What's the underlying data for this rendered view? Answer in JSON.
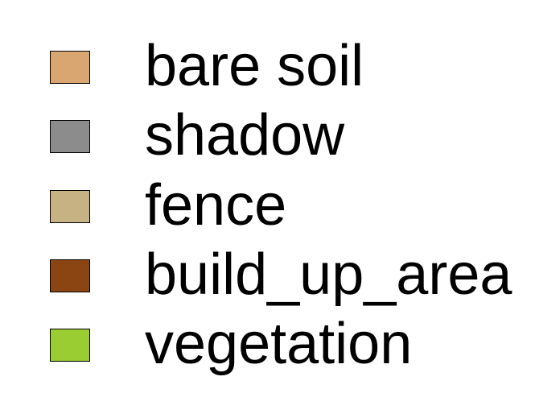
{
  "legend": {
    "items": [
      {
        "label": "bare soil",
        "color": "#D9A672"
      },
      {
        "label": "shadow",
        "color": "#8C8C8C"
      },
      {
        "label": "fence",
        "color": "#C6B383"
      },
      {
        "label": "build_up_area",
        "color": "#8B4513"
      },
      {
        "label": "vegetation",
        "color": "#9ACD32"
      }
    ]
  }
}
